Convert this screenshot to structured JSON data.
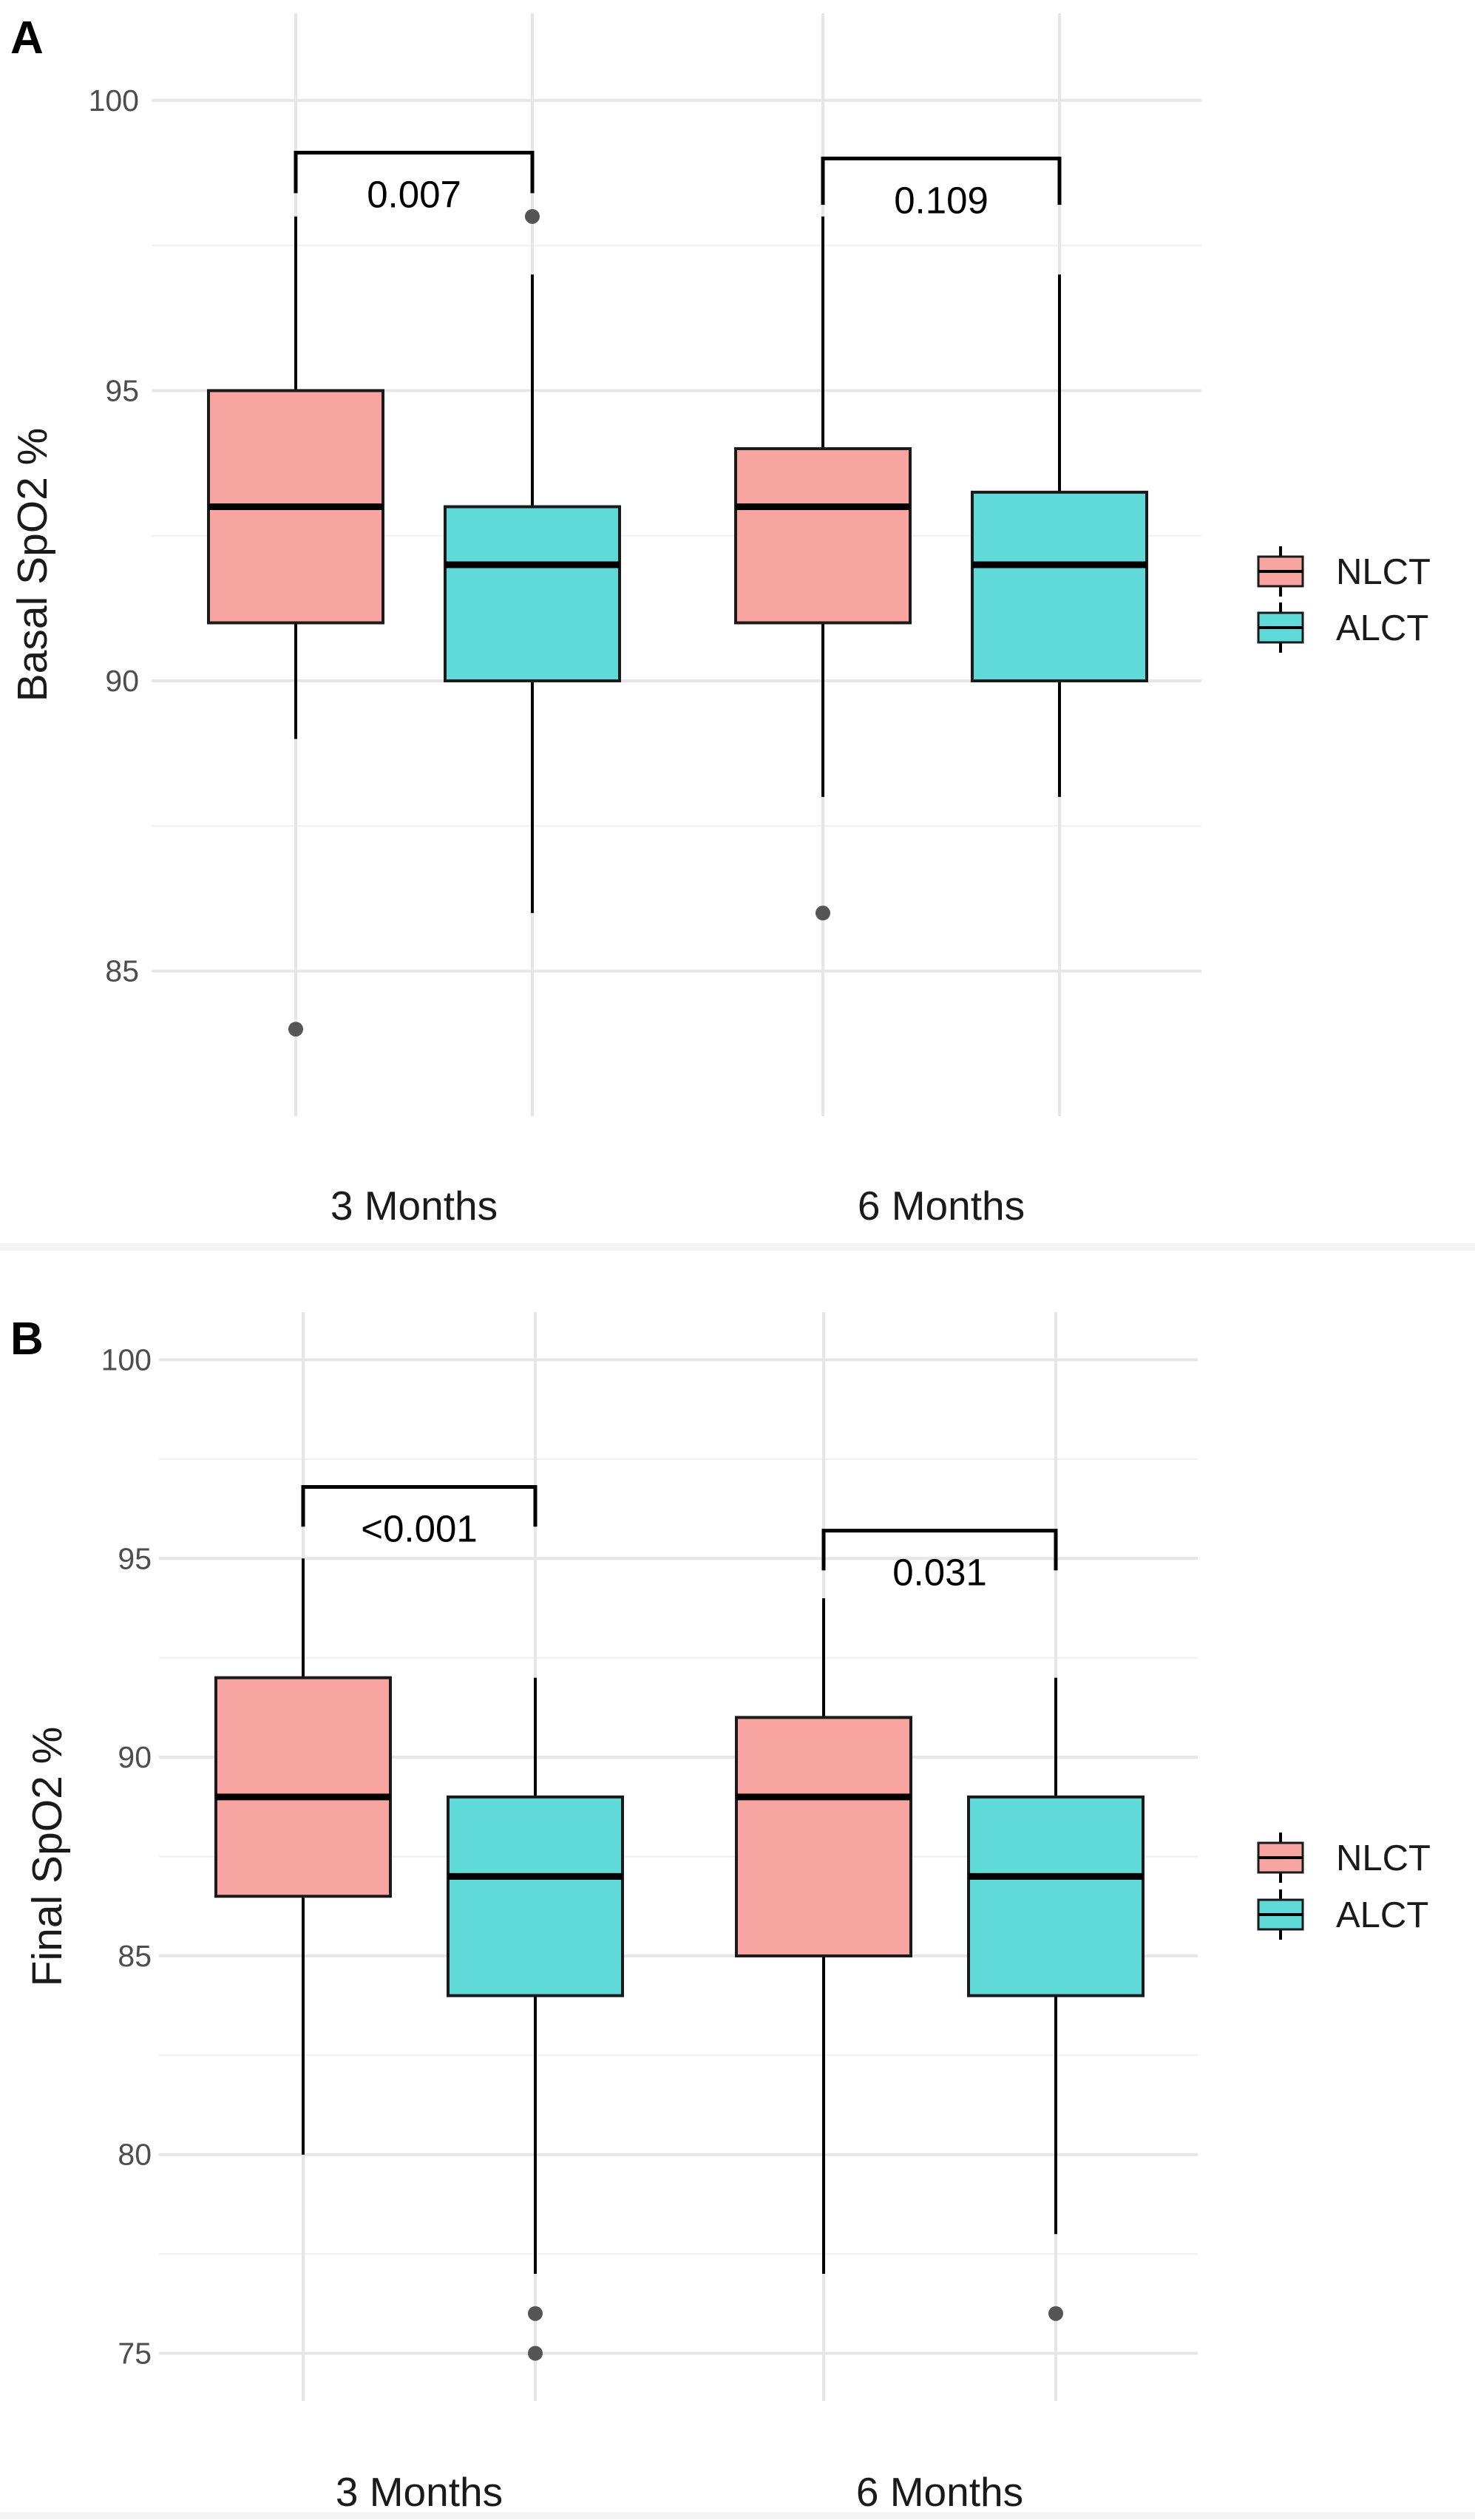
{
  "chart_data": [
    {
      "panel": "A",
      "type": "box",
      "ylabel": "Basal SpO2 %",
      "ylim": [
        82.5,
        101.5
      ],
      "yticks": [
        85,
        90,
        95,
        100
      ],
      "categories": [
        "3 Months",
        "6 Months"
      ],
      "colors": {
        "NLCT": "#f8a5a1",
        "ALCT": "#5fdad9"
      },
      "legend": [
        "NLCT",
        "ALCT"
      ],
      "series": [
        {
          "name": "NLCT",
          "boxes": [
            {
              "category": "3 Months",
              "min": 89,
              "q1": 91,
              "median": 93,
              "q3": 95,
              "max": 98,
              "outliers": [
                84
              ]
            },
            {
              "category": "6 Months",
              "min": 88,
              "q1": 91,
              "median": 93,
              "q3": 94,
              "max": 98,
              "outliers": [
                86
              ]
            }
          ]
        },
        {
          "name": "ALCT",
          "boxes": [
            {
              "category": "3 Months",
              "min": 86,
              "q1": 90,
              "median": 92,
              "q3": 93,
              "max": 97,
              "outliers": [
                98
              ]
            },
            {
              "category": "6 Months",
              "min": 88,
              "q1": 90,
              "median": 92,
              "q3": 93.25,
              "max": 97,
              "outliers": []
            }
          ]
        }
      ],
      "pvalues": [
        {
          "category": "3 Months",
          "label": "0.007",
          "y": 99.1,
          "drop": 0.7
        },
        {
          "category": "6 Months",
          "label": "0.109",
          "y": 99.0,
          "drop": 0.8
        }
      ]
    },
    {
      "panel": "B",
      "type": "box",
      "ylabel": "Final SpO2 %",
      "ylim": [
        73.8,
        101.2
      ],
      "yticks": [
        75,
        80,
        85,
        90,
        95,
        100
      ],
      "categories": [
        "3 Months",
        "6 Months"
      ],
      "colors": {
        "NLCT": "#f8a5a1",
        "ALCT": "#5fdad9"
      },
      "legend": [
        "NLCT",
        "ALCT"
      ],
      "series": [
        {
          "name": "NLCT",
          "boxes": [
            {
              "category": "3 Months",
              "min": 80,
              "q1": 86.5,
              "median": 89,
              "q3": 92,
              "max": 95,
              "outliers": []
            },
            {
              "category": "6 Months",
              "min": 77,
              "q1": 85,
              "median": 89,
              "q3": 91,
              "max": 94,
              "outliers": []
            }
          ]
        },
        {
          "name": "ALCT",
          "boxes": [
            {
              "category": "3 Months",
              "min": 77,
              "q1": 84,
              "median": 87,
              "q3": 89,
              "max": 92,
              "outliers": [
                76,
                75
              ]
            },
            {
              "category": "6 Months",
              "min": 78,
              "q1": 84,
              "median": 87,
              "q3": 89,
              "max": 92,
              "outliers": [
                76
              ]
            }
          ]
        }
      ],
      "pvalues": [
        {
          "category": "3 Months",
          "label": "<0.001",
          "y": 96.8,
          "drop": 1.0
        },
        {
          "category": "6 Months",
          "label": "0.031",
          "y": 95.7,
          "drop": 1.0
        }
      ]
    }
  ]
}
